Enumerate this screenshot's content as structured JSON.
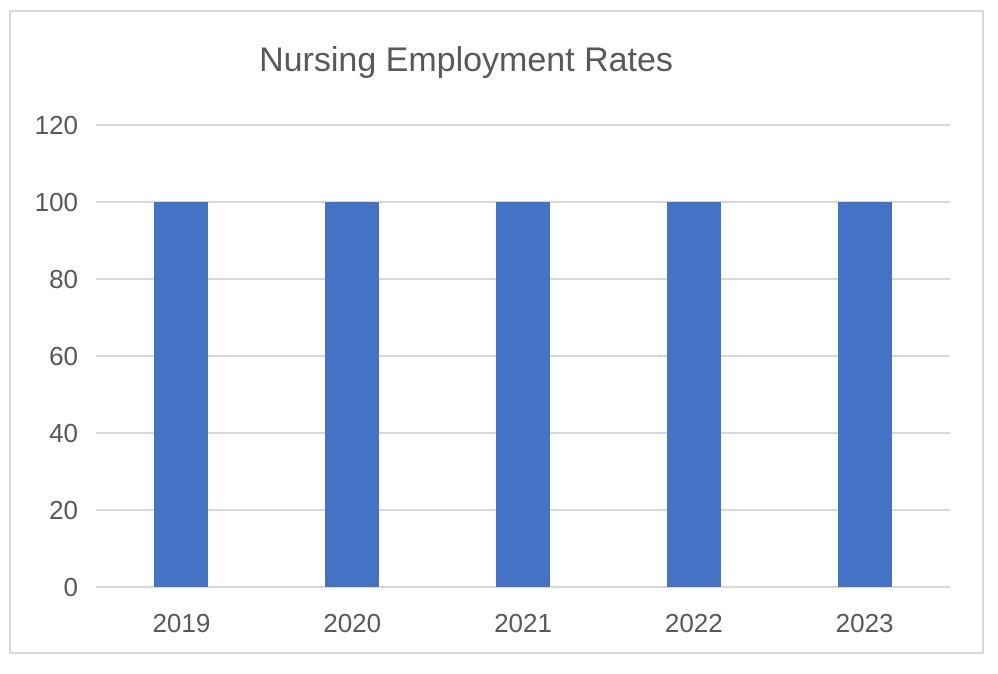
{
  "chart_data": {
    "type": "bar",
    "title": "Nursing Employment Rates",
    "categories": [
      "2019",
      "2020",
      "2021",
      "2022",
      "2023"
    ],
    "values": [
      100,
      100,
      100,
      100,
      100
    ],
    "xlabel": "",
    "ylabel": "",
    "ylim": [
      0,
      120
    ],
    "ytick_step": 20,
    "ytick_labels": [
      "0",
      "20",
      "40",
      "60",
      "80",
      "100",
      "120"
    ],
    "grid": true,
    "legend": false,
    "colors": {
      "bar": "#4472C4",
      "gridline": "#D9D9D9",
      "axis_line": "#D9D9D9",
      "text": "#595959",
      "frame_border": "#D9D9D9",
      "background": "#FFFFFF"
    }
  }
}
